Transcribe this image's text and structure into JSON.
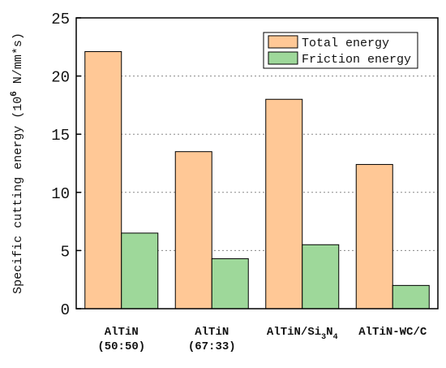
{
  "chart_data": {
    "type": "bar",
    "categories": [
      {
        "line1": "AlTiN",
        "line2": "(50:50)"
      },
      {
        "line1": "AlTiN",
        "line2": "(67:33)"
      },
      {
        "line1": "AlTiN/Si",
        "sub1": "3",
        "mid": "N",
        "sub2": "4"
      },
      {
        "line1": "AlTiN-WC/C"
      }
    ],
    "series": [
      {
        "name": "Total energy",
        "color": "#FFC896",
        "values": [
          22.1,
          13.5,
          18.0,
          12.4
        ]
      },
      {
        "name": "Friction energy",
        "color": "#9ED89A",
        "values": [
          6.5,
          4.3,
          5.5,
          2.0
        ]
      }
    ],
    "ylabel": {
      "pre": "Specific cutting energy  (10",
      "sup": "6",
      "post": " N/mm*s)"
    },
    "ylim": [
      0,
      25
    ],
    "yticks": [
      0,
      5,
      10,
      15,
      20,
      25
    ],
    "grid": "y-dashed",
    "legend_position": "top-right"
  }
}
